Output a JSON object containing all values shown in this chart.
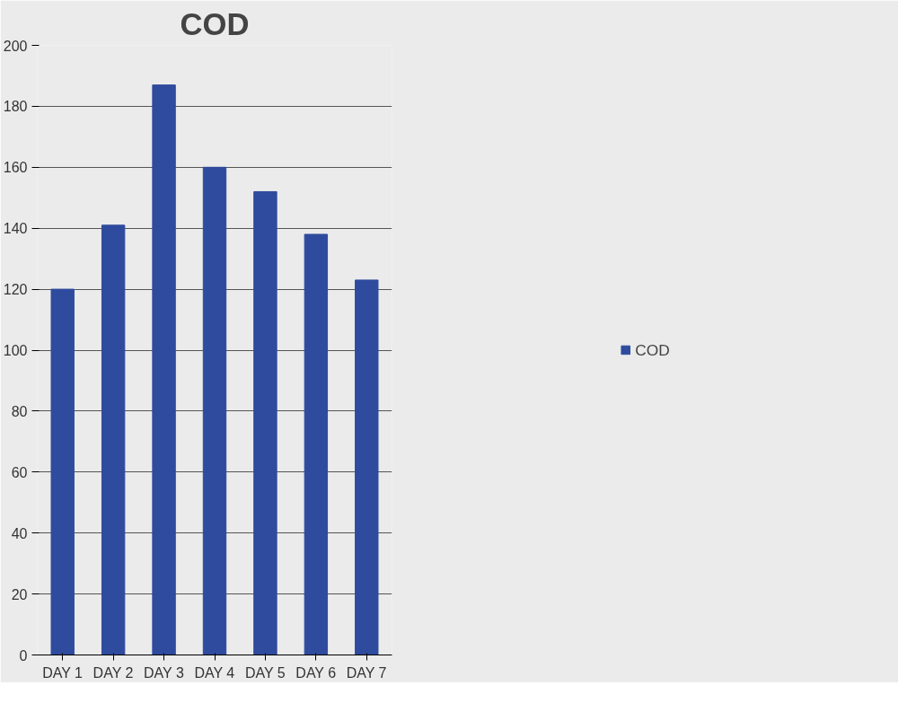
{
  "chart_data": {
    "type": "bar",
    "title": "COD",
    "categories": [
      "DAY 1",
      "DAY 2",
      "DAY 3",
      "DAY 4",
      "DAY 5",
      "DAY 6",
      "DAY 7"
    ],
    "series": [
      {
        "name": "COD",
        "color": "#2f4b9e",
        "values": [
          120,
          141,
          187,
          160,
          152,
          138,
          123
        ]
      }
    ],
    "ylim": [
      0,
      200
    ],
    "yticks": [
      0,
      20,
      40,
      60,
      80,
      100,
      120,
      140,
      160,
      180,
      200
    ],
    "grid": "y",
    "legend": "right"
  }
}
